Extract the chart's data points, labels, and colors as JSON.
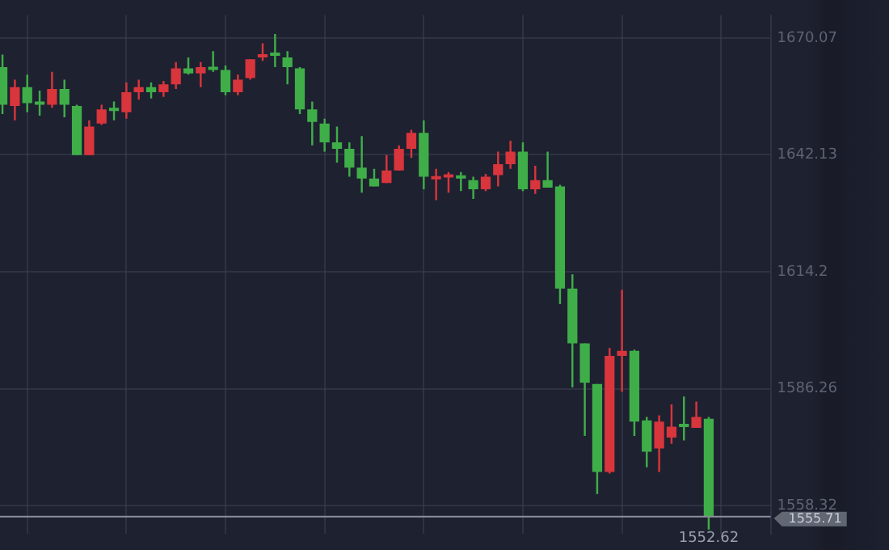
{
  "chart_data": {
    "type": "candlestick",
    "categories": [
      null,
      null,
      null,
      null,
      null,
      null,
      null,
      null,
      null,
      null,
      null,
      null,
      null,
      null,
      null,
      null,
      null,
      null,
      null,
      null,
      null,
      null,
      null,
      null,
      null,
      null,
      null,
      null,
      null,
      null,
      null,
      null,
      null,
      null,
      null,
      null,
      null,
      null,
      null,
      null,
      null,
      null,
      null,
      null,
      null,
      null,
      null,
      null,
      null,
      null,
      null,
      null,
      null,
      null,
      null,
      null,
      null,
      null
    ],
    "ohlc": [
      [
        1663.1,
        1666.1,
        1651.9,
        1654.1
      ],
      [
        1653.8,
        1660.1,
        1650.4,
        1658.3
      ],
      [
        1658.3,
        1661.3,
        1652.3,
        1654.5
      ],
      [
        1654.5,
        1657.5,
        1651.5,
        1654.1
      ],
      [
        1654.1,
        1662.0,
        1653.4,
        1657.9
      ],
      [
        1657.9,
        1660.1,
        1651.1,
        1654.1
      ],
      [
        1653.8,
        1654.1,
        1642.1,
        1642.1
      ],
      [
        1642.1,
        1650.4,
        1642.1,
        1648.9
      ],
      [
        1649.6,
        1654.1,
        1649.3,
        1653.0
      ],
      [
        1652.8,
        1654.9,
        1650.4,
        1652.6
      ],
      [
        1652.3,
        1659.4,
        1650.8,
        1657.1
      ],
      [
        1657.1,
        1660.1,
        1655.3,
        1658.3
      ],
      [
        1658.3,
        1659.4,
        1655.6,
        1657.1
      ],
      [
        1657.1,
        1659.8,
        1656.0,
        1659.0
      ],
      [
        1659.0,
        1664.3,
        1657.9,
        1662.8
      ],
      [
        1662.8,
        1665.4,
        1661.3,
        1661.6
      ],
      [
        1661.6,
        1664.3,
        1658.3,
        1663.1
      ],
      [
        1663.1,
        1666.9,
        1662.0,
        1662.4
      ],
      [
        1662.4,
        1663.5,
        1656.4,
        1657.1
      ],
      [
        1657.1,
        1661.3,
        1656.4,
        1660.1
      ],
      [
        1660.5,
        1665.0,
        1660.1,
        1665.0
      ],
      [
        1665.4,
        1668.8,
        1664.6,
        1666.1
      ],
      [
        1666.1,
        1671.0,
        1663.1,
        1665.8
      ],
      [
        1665.4,
        1666.9,
        1659.0,
        1663.1
      ],
      [
        1662.8,
        1663.1,
        1651.9,
        1653.0
      ],
      [
        1653.0,
        1654.9,
        1644.4,
        1650.0
      ],
      [
        1649.6,
        1650.8,
        1642.9,
        1645.1
      ],
      [
        1645.1,
        1648.9,
        1640.3,
        1643.6
      ],
      [
        1643.6,
        1645.1,
        1636.9,
        1639.1
      ],
      [
        1639.1,
        1646.6,
        1633.1,
        1636.5
      ],
      [
        1636.5,
        1638.8,
        1634.6,
        1634.6
      ],
      [
        1635.4,
        1642.1,
        1635.4,
        1638.4
      ],
      [
        1638.4,
        1644.4,
        1638.4,
        1643.6
      ],
      [
        1643.6,
        1648.1,
        1641.4,
        1647.4
      ],
      [
        1647.4,
        1650.4,
        1633.9,
        1636.9
      ],
      [
        1636.3,
        1638.8,
        1631.3,
        1636.7
      ],
      [
        1636.7,
        1638.0,
        1633.1,
        1637.1
      ],
      [
        1636.9,
        1638.0,
        1633.5,
        1636.5
      ],
      [
        1636.1,
        1636.9,
        1631.6,
        1633.9
      ],
      [
        1633.9,
        1637.6,
        1633.5,
        1636.9
      ],
      [
        1637.3,
        1642.9,
        1634.6,
        1639.9
      ],
      [
        1639.9,
        1645.5,
        1638.8,
        1642.9
      ],
      [
        1642.9,
        1645.1,
        1633.5,
        1633.9
      ],
      [
        1633.9,
        1639.5,
        1632.8,
        1636.1
      ],
      [
        1636.1,
        1642.9,
        1634.3,
        1634.3
      ],
      [
        1634.6,
        1635.0,
        1606.5,
        1610.2
      ],
      [
        1610.2,
        1613.6,
        1586.6,
        1597.1
      ],
      [
        1597.1,
        1597.1,
        1575.0,
        1587.7
      ],
      [
        1587.4,
        1587.4,
        1561.1,
        1566.4
      ],
      [
        1566.4,
        1596.0,
        1566.0,
        1594.1
      ],
      [
        1594.1,
        1609.9,
        1585.5,
        1595.3
      ],
      [
        1595.3,
        1595.6,
        1575.0,
        1578.4
      ],
      [
        1578.7,
        1579.5,
        1567.5,
        1571.2
      ],
      [
        1572.0,
        1579.9,
        1566.4,
        1578.4
      ],
      [
        1574.6,
        1582.5,
        1573.1,
        1577.2
      ],
      [
        1577.6,
        1584.4,
        1573.9,
        1577.1
      ],
      [
        1576.9,
        1583.2,
        1576.9,
        1579.5
      ],
      [
        1579.1,
        1579.5,
        1552.62,
        1555.71
      ]
    ],
    "colors": [
      "#3fae49",
      "#d8353c",
      "#3fae49",
      "#3fae49",
      "#d8353c",
      "#3fae49",
      "#3fae49",
      "#d8353c",
      "#d8353c",
      "#3fae49",
      "#d8353c",
      "#d8353c",
      "#3fae49",
      "#d8353c",
      "#d8353c",
      "#3fae49",
      "#d8353c",
      "#3fae49",
      "#3fae49",
      "#d8353c",
      "#d8353c",
      "#d8353c",
      "#3fae49",
      "#3fae49",
      "#3fae49",
      "#3fae49",
      "#3fae49",
      "#3fae49",
      "#3fae49",
      "#3fae49",
      "#3fae49",
      "#d8353c",
      "#d8353c",
      "#d8353c",
      "#3fae49",
      "#d8353c",
      "#d8353c",
      "#3fae49",
      "#3fae49",
      "#d8353c",
      "#d8353c",
      "#d8353c",
      "#3fae49",
      "#d8353c",
      "#3fae49",
      "#3fae49",
      "#3fae49",
      "#3fae49",
      "#3fae49",
      "#d8353c",
      "#d8353c",
      "#3fae49",
      "#3fae49",
      "#d8353c",
      "#d8353c",
      "#3fae49",
      "#d8353c",
      "#3fae49"
    ],
    "ylim": [
      1551.6,
      1675.5
    ],
    "yticks": [
      1558.32,
      1586.26,
      1614.2,
      1642.13,
      1670.07
    ],
    "grid": true,
    "ref_lines": [
      {
        "axis": "y",
        "value": 1555.71,
        "label": "1555.71",
        "color": "#8a8f9c"
      }
    ],
    "annotations": [
      {
        "text": "1552.62",
        "y": 1552.62
      }
    ]
  }
}
